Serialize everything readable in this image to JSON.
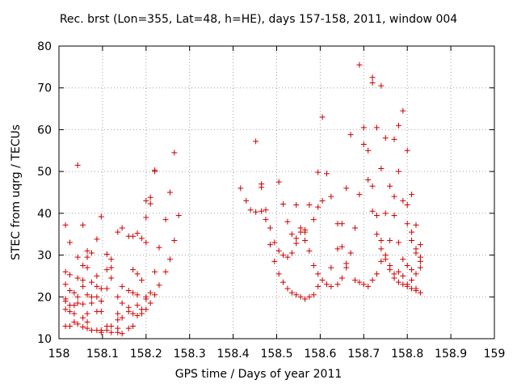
{
  "chart_data": {
    "type": "scatter",
    "title": "Rec. brst (Lon=355, Lat=48, h=HE), days 157-158, 2011, window 004",
    "xlabel": "GPS time / Days of year 2011",
    "ylabel": "STEC from uqrg / TECUs",
    "xlim": [
      158,
      159
    ],
    "ylim": [
      10,
      80
    ],
    "xticks": [
      "158",
      "158.1",
      "158.2",
      "158.3",
      "158.4",
      "158.5",
      "158.6",
      "158.7",
      "158.8",
      "158.9",
      "159"
    ],
    "yticks": [
      "10",
      "20",
      "30",
      "40",
      "50",
      "60",
      "70",
      "80"
    ],
    "grid": true,
    "marker": "+",
    "color": "#cc0000",
    "series": [
      {
        "points": [
          [
            158.015,
            37.2
          ],
          [
            158.015,
            26.0
          ],
          [
            158.015,
            23.0
          ],
          [
            158.015,
            19.5
          ],
          [
            158.015,
            19.0
          ],
          [
            158.015,
            17.0
          ],
          [
            158.015,
            13.0
          ],
          [
            158.025,
            33.0
          ],
          [
            158.025,
            25.3
          ],
          [
            158.025,
            21.5
          ],
          [
            158.025,
            18.0
          ],
          [
            158.025,
            16.5
          ],
          [
            158.025,
            13.0
          ],
          [
            158.035,
            21.0
          ],
          [
            158.035,
            18.0
          ],
          [
            158.035,
            16.0
          ],
          [
            158.035,
            14.0
          ],
          [
            158.043,
            51.5
          ],
          [
            158.043,
            29.5
          ],
          [
            158.043,
            24.5
          ],
          [
            158.043,
            20.0
          ],
          [
            158.043,
            18.5
          ],
          [
            158.043,
            13.5
          ],
          [
            158.055,
            37.2
          ],
          [
            158.055,
            27.5
          ],
          [
            158.055,
            24.0
          ],
          [
            158.055,
            22.5
          ],
          [
            158.055,
            18.3
          ],
          [
            158.055,
            15.0
          ],
          [
            158.055,
            12.8
          ],
          [
            158.065,
            31.0
          ],
          [
            158.065,
            29.5
          ],
          [
            158.065,
            27.0
          ],
          [
            158.065,
            20.5
          ],
          [
            158.065,
            16.0
          ],
          [
            158.065,
            14.0
          ],
          [
            158.065,
            12.5
          ],
          [
            158.075,
            30.5
          ],
          [
            158.075,
            23.5
          ],
          [
            158.075,
            20.0
          ],
          [
            158.075,
            18.5
          ],
          [
            158.075,
            12.0
          ],
          [
            158.087,
            33.8
          ],
          [
            158.087,
            25.0
          ],
          [
            158.087,
            22.5
          ],
          [
            158.087,
            20.0
          ],
          [
            158.087,
            16.5
          ],
          [
            158.087,
            12.0
          ],
          [
            158.097,
            39.2
          ],
          [
            158.097,
            22.0
          ],
          [
            158.097,
            19.0
          ],
          [
            158.097,
            16.5
          ],
          [
            158.097,
            12.0
          ],
          [
            158.097,
            11.5
          ],
          [
            158.11,
            30.2
          ],
          [
            158.11,
            26.5
          ],
          [
            158.11,
            22.0
          ],
          [
            158.11,
            13.0
          ],
          [
            158.11,
            12.0
          ],
          [
            158.12,
            29.0
          ],
          [
            158.12,
            27.0
          ],
          [
            158.12,
            24.5
          ],
          [
            158.12,
            13.0
          ],
          [
            158.12,
            11.5
          ],
          [
            158.135,
            35.5
          ],
          [
            158.135,
            20.0
          ],
          [
            158.135,
            16.0
          ],
          [
            158.135,
            14.5
          ],
          [
            158.135,
            12.5
          ],
          [
            158.135,
            11.5
          ],
          [
            158.145,
            36.5
          ],
          [
            158.145,
            22.5
          ],
          [
            158.145,
            18.5
          ],
          [
            158.145,
            15.0
          ],
          [
            158.145,
            11.2
          ],
          [
            158.16,
            34.5
          ],
          [
            158.16,
            21.5
          ],
          [
            158.16,
            17.5
          ],
          [
            158.16,
            16.5
          ],
          [
            158.16,
            12.5
          ],
          [
            158.17,
            34.5
          ],
          [
            158.17,
            26.5
          ],
          [
            158.17,
            21.0
          ],
          [
            158.17,
            16.0
          ],
          [
            158.17,
            13.0
          ],
          [
            158.18,
            35.2
          ],
          [
            158.18,
            25.5
          ],
          [
            158.18,
            20.5
          ],
          [
            158.18,
            18.0
          ],
          [
            158.18,
            15.5
          ],
          [
            158.19,
            34.0
          ],
          [
            158.19,
            24.0
          ],
          [
            158.19,
            17.0
          ],
          [
            158.19,
            16.0
          ],
          [
            158.2,
            43.0
          ],
          [
            158.2,
            39.0
          ],
          [
            158.2,
            33.0
          ],
          [
            158.2,
            20.0
          ],
          [
            158.2,
            19.5
          ],
          [
            158.2,
            17.0
          ],
          [
            158.21,
            43.8
          ],
          [
            158.21,
            42.3
          ],
          [
            158.21,
            21.0
          ],
          [
            158.21,
            18.5
          ],
          [
            158.22,
            50.3
          ],
          [
            158.22,
            50.0
          ],
          [
            158.22,
            26.0
          ],
          [
            158.22,
            20.5
          ],
          [
            158.23,
            31.8
          ],
          [
            158.23,
            22.8
          ],
          [
            158.245,
            38.5
          ],
          [
            158.245,
            26.0
          ],
          [
            158.255,
            45.0
          ],
          [
            158.255,
            29.0
          ],
          [
            158.265,
            54.5
          ],
          [
            158.265,
            33.5
          ],
          [
            158.275,
            39.5
          ],
          [
            158.417,
            46.0
          ],
          [
            158.43,
            43.0
          ],
          [
            158.44,
            40.8
          ],
          [
            158.452,
            57.2
          ],
          [
            158.452,
            40.3
          ],
          [
            158.465,
            47.0
          ],
          [
            158.465,
            46.2
          ],
          [
            158.465,
            40.5
          ],
          [
            158.475,
            40.8
          ],
          [
            158.475,
            38.5
          ],
          [
            158.485,
            36.5
          ],
          [
            158.485,
            32.5
          ],
          [
            158.495,
            33.0
          ],
          [
            158.495,
            28.5
          ],
          [
            158.505,
            47.5
          ],
          [
            158.505,
            31.0
          ],
          [
            158.505,
            25.5
          ],
          [
            158.515,
            42.2
          ],
          [
            158.515,
            30.0
          ],
          [
            158.515,
            23.5
          ],
          [
            158.525,
            38.0
          ],
          [
            158.525,
            29.5
          ],
          [
            158.525,
            22.0
          ],
          [
            158.535,
            35.0
          ],
          [
            158.535,
            30.5
          ],
          [
            158.535,
            21.0
          ],
          [
            158.545,
            42.0
          ],
          [
            158.545,
            34.0
          ],
          [
            158.545,
            32.8
          ],
          [
            158.545,
            20.5
          ],
          [
            158.555,
            36.5
          ],
          [
            158.555,
            35.5
          ],
          [
            158.555,
            20.0
          ],
          [
            158.565,
            36.0
          ],
          [
            158.565,
            35.5
          ],
          [
            158.565,
            33.5
          ],
          [
            158.565,
            19.5
          ],
          [
            158.575,
            42.0
          ],
          [
            158.575,
            31.0
          ],
          [
            158.575,
            20.0
          ],
          [
            158.585,
            38.5
          ],
          [
            158.585,
            27.5
          ],
          [
            158.585,
            20.5
          ],
          [
            158.595,
            49.8
          ],
          [
            158.595,
            41.5
          ],
          [
            158.595,
            25.5
          ],
          [
            158.595,
            22.5
          ],
          [
            158.605,
            63.0
          ],
          [
            158.605,
            43.0
          ],
          [
            158.605,
            24.0
          ],
          [
            158.615,
            49.5
          ],
          [
            158.615,
            23.0
          ],
          [
            158.625,
            44.0
          ],
          [
            158.625,
            27.0
          ],
          [
            158.625,
            22.5
          ],
          [
            158.64,
            37.5
          ],
          [
            158.64,
            31.5
          ],
          [
            158.64,
            23.0
          ],
          [
            158.65,
            37.5
          ],
          [
            158.65,
            32.0
          ],
          [
            158.65,
            24.5
          ],
          [
            158.66,
            46.0
          ],
          [
            158.66,
            28.0
          ],
          [
            158.66,
            27.0
          ],
          [
            158.67,
            58.8
          ],
          [
            158.67,
            30.5
          ],
          [
            158.68,
            36.5
          ],
          [
            158.68,
            24.0
          ],
          [
            158.69,
            75.5
          ],
          [
            158.69,
            44.5
          ],
          [
            158.69,
            23.5
          ],
          [
            158.7,
            60.5
          ],
          [
            158.7,
            56.5
          ],
          [
            158.7,
            23.0
          ],
          [
            158.71,
            55.0
          ],
          [
            158.71,
            48.0
          ],
          [
            158.71,
            22.5
          ],
          [
            158.72,
            72.5
          ],
          [
            158.72,
            71.2
          ],
          [
            158.72,
            46.5
          ],
          [
            158.72,
            40.5
          ],
          [
            158.72,
            24.0
          ],
          [
            158.73,
            60.5
          ],
          [
            158.73,
            39.5
          ],
          [
            158.73,
            35.0
          ],
          [
            158.73,
            25.5
          ],
          [
            158.74,
            70.5
          ],
          [
            158.74,
            50.7
          ],
          [
            158.74,
            33.5
          ],
          [
            158.74,
            31.5
          ],
          [
            158.74,
            28.5
          ],
          [
            158.75,
            58.0
          ],
          [
            158.75,
            40.0
          ],
          [
            158.75,
            30.0
          ],
          [
            158.75,
            29.0
          ],
          [
            158.76,
            46.5
          ],
          [
            158.76,
            33.5
          ],
          [
            158.76,
            27.5
          ],
          [
            158.76,
            26.5
          ],
          [
            158.77,
            57.7
          ],
          [
            158.77,
            44.0
          ],
          [
            158.77,
            39.5
          ],
          [
            158.77,
            25.5
          ],
          [
            158.77,
            24.5
          ],
          [
            158.78,
            61.0
          ],
          [
            158.78,
            50.0
          ],
          [
            158.78,
            33.0
          ],
          [
            158.78,
            26.0
          ],
          [
            158.78,
            23.5
          ],
          [
            158.79,
            64.5
          ],
          [
            158.79,
            43.0
          ],
          [
            158.79,
            29.0
          ],
          [
            158.79,
            25.0
          ],
          [
            158.79,
            23.0
          ],
          [
            158.8,
            55.0
          ],
          [
            158.8,
            42.0
          ],
          [
            158.8,
            37.5
          ],
          [
            158.8,
            27.5
          ],
          [
            158.8,
            23.0
          ],
          [
            158.8,
            22.5
          ],
          [
            158.81,
            44.5
          ],
          [
            158.81,
            35.5
          ],
          [
            158.81,
            33.5
          ],
          [
            158.81,
            26.5
          ],
          [
            158.81,
            24.0
          ],
          [
            158.81,
            22.0
          ],
          [
            158.82,
            37.2
          ],
          [
            158.82,
            31.5
          ],
          [
            158.82,
            30.5
          ],
          [
            158.82,
            25.5
          ],
          [
            158.82,
            22.0
          ],
          [
            158.82,
            21.5
          ],
          [
            158.83,
            32.5
          ],
          [
            158.83,
            29.5
          ],
          [
            158.83,
            28.5
          ],
          [
            158.83,
            27.0
          ],
          [
            158.83,
            21.0
          ]
        ]
      }
    ]
  }
}
